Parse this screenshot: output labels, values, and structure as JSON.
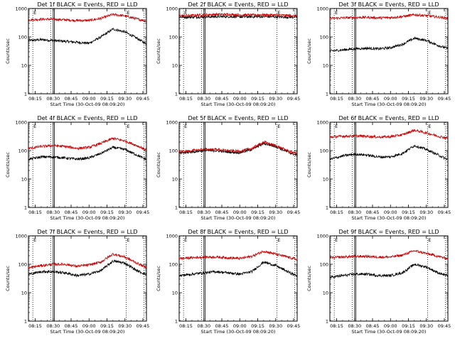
{
  "figure_ylabel": "Counts/sec",
  "figure_xlabel": "Start Time (30-Oct-09 08:09:20)",
  "x_tick_labels": [
    "08:15",
    "08:30",
    "08:45",
    "09:00",
    "09:15",
    "09:30",
    "09:45"
  ],
  "y_tick_labels": [
    "1",
    "10",
    "100",
    "1000"
  ],
  "colors": {
    "events": "#000000",
    "lld": "#cc0000"
  },
  "chart_data": [
    {
      "type": "line",
      "title": "Det 1f BLACK = Events, RED = LLD",
      "xlabel": "Start Time (30-Oct-09 08:09:20)",
      "ylabel": "Counts/sec",
      "ylog": true,
      "ylim": [
        1,
        1000
      ],
      "xlim": [
        "08:09:20",
        "09:48:00"
      ],
      "x": [
        "08:10",
        "08:20",
        "08:30",
        "08:40",
        "08:50",
        "09:00",
        "09:10",
        "09:20",
        "09:30",
        "09:40",
        "09:47"
      ],
      "series": [
        {
          "name": "Events",
          "color": "#000000",
          "values": [
            75,
            80,
            75,
            70,
            65,
            60,
            100,
            190,
            150,
            90,
            60
          ]
        },
        {
          "name": "LLD",
          "color": "#cc0000",
          "values": [
            400,
            420,
            420,
            400,
            380,
            380,
            450,
            620,
            550,
            430,
            370
          ]
        }
      ],
      "annotations": {
        "vertical_dotted_lines": [
          "08:13",
          "08:28",
          "09:31",
          "09:46"
        ],
        "vertical_solid_lines": [
          "08:30",
          "08:31"
        ],
        "markers": [
          "E",
          "E"
        ]
      }
    },
    {
      "type": "line",
      "title": "Det 2f BLACK = Events, RED = LLD",
      "xlabel": "Start Time (30-Oct-09 08:09:20)",
      "ylabel": "Counts/sec",
      "ylog": true,
      "ylim": [
        1,
        1000
      ],
      "xlim": [
        "08:09:20",
        "09:48:00"
      ],
      "x": [
        "08:10",
        "08:20",
        "08:30",
        "08:40",
        "08:50",
        "09:00",
        "09:10",
        "09:20",
        "09:30",
        "09:40",
        "09:47"
      ],
      "series": [
        {
          "name": "Events",
          "color": "#000000",
          "values": [
            500,
            500,
            510,
            520,
            520,
            510,
            510,
            520,
            510,
            500,
            500
          ]
        },
        {
          "name": "LLD",
          "color": "#cc0000",
          "values": [
            560,
            570,
            600,
            620,
            620,
            600,
            590,
            600,
            590,
            570,
            560
          ]
        }
      ],
      "annotations": {
        "vertical_dotted_lines": [
          "08:13",
          "08:28",
          "09:31",
          "09:46"
        ],
        "vertical_solid_lines": [
          "08:30",
          "08:31"
        ],
        "markers": [
          "E",
          "E"
        ]
      }
    },
    {
      "type": "line",
      "title": "Det 3f BLACK = Events, RED = LLD",
      "xlabel": "Start Time (30-Oct-09 08:09:20)",
      "ylabel": "Counts/sec",
      "ylog": true,
      "ylim": [
        1,
        1000
      ],
      "xlim": [
        "08:09:20",
        "09:48:00"
      ],
      "x": [
        "08:10",
        "08:20",
        "08:30",
        "08:40",
        "08:50",
        "09:00",
        "09:10",
        "09:20",
        "09:30",
        "09:40",
        "09:47"
      ],
      "series": [
        {
          "name": "Events",
          "color": "#000000",
          "values": [
            32,
            35,
            38,
            40,
            38,
            42,
            55,
            90,
            75,
            50,
            40
          ]
        },
        {
          "name": "LLD",
          "color": "#cc0000",
          "values": [
            450,
            470,
            480,
            490,
            470,
            480,
            520,
            600,
            560,
            500,
            460
          ]
        }
      ],
      "annotations": {
        "vertical_dotted_lines": [
          "08:13",
          "08:28",
          "09:31",
          "09:46"
        ],
        "vertical_solid_lines": [
          "08:30",
          "08:31"
        ],
        "markers": [
          "E",
          "E"
        ]
      }
    },
    {
      "type": "line",
      "title": "Det 4f BLACK = Events, RED = LLD",
      "xlabel": "Start Time (30-Oct-09 08:09:20)",
      "ylabel": "Counts/sec",
      "ylog": true,
      "ylim": [
        1,
        1000
      ],
      "xlim": [
        "08:09:20",
        "09:48:00"
      ],
      "x": [
        "08:10",
        "08:20",
        "08:30",
        "08:40",
        "08:50",
        "09:00",
        "09:10",
        "09:20",
        "09:30",
        "09:40",
        "09:47"
      ],
      "series": [
        {
          "name": "Events",
          "color": "#000000",
          "values": [
            50,
            60,
            60,
            55,
            50,
            55,
            80,
            130,
            110,
            70,
            50
          ]
        },
        {
          "name": "LLD",
          "color": "#cc0000",
          "values": [
            120,
            140,
            150,
            140,
            120,
            130,
            180,
            270,
            220,
            150,
            110
          ]
        }
      ],
      "annotations": {
        "vertical_dotted_lines": [
          "08:13",
          "08:28",
          "09:31",
          "09:46"
        ],
        "vertical_solid_lines": [
          "08:30",
          "08:31"
        ],
        "markers": [
          "E",
          "E"
        ]
      }
    },
    {
      "type": "line",
      "title": "Det 5f BLACK = Events, RED = LLD",
      "xlabel": "Start Time (30-Oct-09 08:09:20)",
      "ylabel": "Counts/sec",
      "ylog": true,
      "ylim": [
        1,
        1000
      ],
      "xlim": [
        "08:09:20",
        "09:48:00"
      ],
      "x": [
        "08:10",
        "08:20",
        "08:30",
        "08:40",
        "08:50",
        "09:00",
        "09:10",
        "09:20",
        "09:30",
        "09:40",
        "09:47"
      ],
      "series": [
        {
          "name": "Events",
          "color": "#000000",
          "values": [
            80,
            90,
            100,
            100,
            90,
            85,
            110,
            180,
            140,
            90,
            70
          ]
        },
        {
          "name": "LLD",
          "color": "#cc0000",
          "values": [
            90,
            100,
            110,
            110,
            100,
            95,
            120,
            200,
            150,
            100,
            80
          ]
        }
      ],
      "annotations": {
        "vertical_dotted_lines": [
          "08:13",
          "08:28",
          "09:31",
          "09:46"
        ],
        "vertical_solid_lines": [
          "08:30",
          "08:31"
        ],
        "markers": [
          "E",
          "E"
        ]
      }
    },
    {
      "type": "line",
      "title": "Det 6f BLACK = Events, RED = LLD",
      "xlabel": "Start Time (30-Oct-09 08:09:20)",
      "ylabel": "Counts/sec",
      "ylog": true,
      "ylim": [
        1,
        1000
      ],
      "xlim": [
        "08:09:20",
        "09:48:00"
      ],
      "x": [
        "08:10",
        "08:20",
        "08:30",
        "08:40",
        "08:50",
        "09:00",
        "09:10",
        "09:20",
        "09:30",
        "09:40",
        "09:47"
      ],
      "series": [
        {
          "name": "Events",
          "color": "#000000",
          "values": [
            50,
            65,
            75,
            70,
            60,
            60,
            80,
            150,
            110,
            70,
            50
          ]
        },
        {
          "name": "LLD",
          "color": "#cc0000",
          "values": [
            300,
            320,
            330,
            320,
            300,
            310,
            360,
            520,
            420,
            320,
            280
          ]
        }
      ],
      "annotations": {
        "vertical_dotted_lines": [
          "08:13",
          "08:28",
          "09:31",
          "09:46"
        ],
        "vertical_solid_lines": [
          "08:30",
          "08:31"
        ],
        "markers": [
          "E",
          "E"
        ]
      }
    },
    {
      "type": "line",
      "title": "Det 7f BLACK = Events, RED = LLD",
      "xlabel": "Start Time (30-Oct-09 08:09:20)",
      "ylabel": "Counts/sec",
      "ylog": true,
      "ylim": [
        1,
        1000
      ],
      "xlim": [
        "08:09:20",
        "09:48:00"
      ],
      "x": [
        "08:10",
        "08:20",
        "08:30",
        "08:40",
        "08:50",
        "09:00",
        "09:10",
        "09:20",
        "09:30",
        "09:40",
        "09:47"
      ],
      "series": [
        {
          "name": "Events",
          "color": "#000000",
          "values": [
            45,
            55,
            55,
            50,
            40,
            45,
            60,
            130,
            110,
            60,
            45
          ]
        },
        {
          "name": "LLD",
          "color": "#cc0000",
          "values": [
            75,
            90,
            100,
            100,
            85,
            95,
            120,
            230,
            180,
            110,
            80
          ]
        }
      ],
      "annotations": {
        "vertical_dotted_lines": [
          "08:13",
          "08:28",
          "09:31",
          "09:46"
        ],
        "vertical_solid_lines": [
          "08:30",
          "08:31"
        ],
        "markers": [
          "E",
          "E"
        ]
      }
    },
    {
      "type": "line",
      "title": "Det 8f BLACK = Events, RED = LLD",
      "xlabel": "Start Time (30-Oct-09 08:09:20)",
      "ylabel": "Counts/sec",
      "ylog": true,
      "ylim": [
        1,
        1000
      ],
      "xlim": [
        "08:09:20",
        "09:48:00"
      ],
      "x": [
        "08:10",
        "08:20",
        "08:30",
        "08:40",
        "08:50",
        "09:00",
        "09:10",
        "09:20",
        "09:30",
        "09:40",
        "09:47"
      ],
      "series": [
        {
          "name": "Events",
          "color": "#000000",
          "values": [
            40,
            45,
            50,
            55,
            50,
            45,
            55,
            120,
            90,
            55,
            40
          ]
        },
        {
          "name": "LLD",
          "color": "#cc0000",
          "values": [
            160,
            170,
            180,
            180,
            170,
            160,
            190,
            290,
            230,
            180,
            150
          ]
        }
      ],
      "annotations": {
        "vertical_dotted_lines": [
          "08:13",
          "08:28",
          "09:31",
          "09:46"
        ],
        "vertical_solid_lines": [
          "08:30",
          "08:31"
        ],
        "markers": [
          "E",
          "E"
        ]
      }
    },
    {
      "type": "line",
      "title": "Det 9f BLACK = Events, RED = LLD",
      "xlabel": "Start Time (30-Oct-09 08:09:20)",
      "ylabel": "Counts/sec",
      "ylog": true,
      "ylim": [
        1,
        1000
      ],
      "xlim": [
        "08:09:20",
        "09:48:00"
      ],
      "x": [
        "08:10",
        "08:20",
        "08:30",
        "08:40",
        "08:50",
        "09:00",
        "09:10",
        "09:20",
        "09:30",
        "09:40",
        "09:47"
      ],
      "series": [
        {
          "name": "Events",
          "color": "#000000",
          "values": [
            35,
            40,
            45,
            45,
            40,
            40,
            50,
            100,
            80,
            50,
            40
          ]
        },
        {
          "name": "LLD",
          "color": "#cc0000",
          "values": [
            170,
            180,
            190,
            190,
            180,
            180,
            210,
            300,
            240,
            190,
            160
          ]
        }
      ],
      "annotations": {
        "vertical_dotted_lines": [
          "08:13",
          "08:28",
          "09:31",
          "09:46"
        ],
        "vertical_solid_lines": [
          "08:30",
          "08:31"
        ],
        "markers": [
          "E",
          "E"
        ]
      }
    }
  ]
}
